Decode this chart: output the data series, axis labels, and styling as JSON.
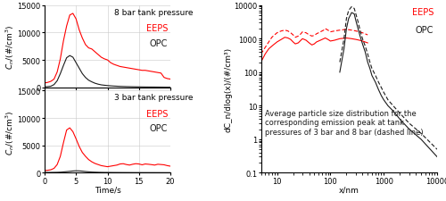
{
  "left_panel": {
    "top": {
      "title": "8 bar tank pressure",
      "eeps_color": "#ff0000",
      "opc_color": "#1a1a1a",
      "ylim": [
        0,
        15000
      ],
      "yticks": [
        0,
        5000,
        10000,
        15000
      ],
      "eeps_x": [
        0,
        0.5,
        1,
        1.5,
        2,
        2.5,
        3,
        3.5,
        4,
        4.5,
        5,
        5.5,
        6,
        6.5,
        7,
        7.5,
        8,
        8.5,
        9,
        9.5,
        10,
        10.5,
        11,
        11.5,
        12,
        12.5,
        13,
        13.5,
        14,
        14.5,
        15,
        15.5,
        16,
        16.5,
        17,
        17.5,
        18,
        18.5,
        19,
        19.5,
        20
      ],
      "eeps_y": [
        800,
        900,
        1100,
        1500,
        2800,
        5200,
        8500,
        11200,
        13200,
        13500,
        12500,
        10500,
        9000,
        7800,
        7200,
        7000,
        6500,
        6000,
        5500,
        5200,
        5000,
        4500,
        4200,
        4000,
        3800,
        3700,
        3600,
        3500,
        3400,
        3300,
        3200,
        3100,
        3100,
        3000,
        2900,
        2800,
        2700,
        2600,
        1800,
        1600,
        1500
      ],
      "opc_x": [
        0,
        0.5,
        1,
        1.5,
        2,
        2.5,
        3,
        3.5,
        4,
        4.5,
        5,
        5.5,
        6,
        6.5,
        7,
        7.5,
        8,
        8.5,
        9,
        9.5,
        10,
        10.5,
        11,
        11.5,
        12,
        12.5,
        13,
        13.5,
        14,
        14.5,
        15,
        15.5,
        16,
        16.5,
        17,
        17.5,
        18,
        18.5,
        19,
        19.5,
        20
      ],
      "opc_y": [
        100,
        120,
        200,
        500,
        1200,
        2500,
        4000,
        5400,
        5800,
        5500,
        4500,
        3500,
        2500,
        1800,
        1300,
        1000,
        750,
        580,
        450,
        380,
        320,
        270,
        230,
        200,
        170,
        150,
        130,
        115,
        100,
        90,
        80,
        70,
        60,
        55,
        50,
        45,
        40,
        35,
        30,
        25,
        20
      ]
    },
    "bottom": {
      "title": "3 bar tank pressure",
      "eeps_color": "#ff0000",
      "opc_color": "#1a1a1a",
      "ylim": [
        0,
        15000
      ],
      "yticks": [
        0,
        5000,
        10000,
        15000
      ],
      "xlabel": "Time/s",
      "xlim": [
        0,
        20
      ],
      "xticks": [
        0,
        5,
        10,
        15,
        20
      ],
      "eeps_x": [
        0,
        0.5,
        1,
        1.5,
        2,
        2.5,
        3,
        3.5,
        4,
        4.5,
        5,
        5.5,
        6,
        6.5,
        7,
        7.5,
        8,
        8.5,
        9,
        9.5,
        10,
        10.5,
        11,
        11.5,
        12,
        12.5,
        13,
        13.5,
        14,
        14.5,
        15,
        15.5,
        16,
        16.5,
        17,
        17.5,
        18,
        18.5,
        19,
        19.5,
        20
      ],
      "eeps_y": [
        400,
        450,
        550,
        800,
        1500,
        3000,
        5500,
        7800,
        8200,
        7500,
        6200,
        4800,
        3700,
        3000,
        2400,
        2000,
        1700,
        1500,
        1300,
        1200,
        1100,
        1200,
        1300,
        1400,
        1600,
        1650,
        1500,
        1400,
        1550,
        1650,
        1600,
        1450,
        1600,
        1550,
        1480,
        1400,
        1550,
        1500,
        1450,
        1300,
        1200
      ],
      "opc_x": [
        0,
        0.5,
        1,
        1.5,
        2,
        2.5,
        3,
        3.5,
        4,
        4.5,
        5,
        5.5,
        6,
        6.5,
        7,
        7.5,
        8,
        8.5,
        9,
        9.5,
        10,
        10.5,
        11,
        11.5,
        12,
        12.5,
        13,
        13.5,
        14,
        14.5,
        15,
        15.5,
        16,
        16.5,
        17,
        17.5,
        18,
        18.5,
        19,
        19.5,
        20
      ],
      "opc_y": [
        50,
        55,
        60,
        65,
        75,
        100,
        150,
        200,
        260,
        320,
        360,
        340,
        290,
        220,
        170,
        130,
        100,
        80,
        65,
        55,
        50,
        45,
        40,
        38,
        35,
        32,
        30,
        28,
        25,
        23,
        22,
        20,
        19,
        18,
        17,
        16,
        15,
        14,
        13,
        12,
        10
      ]
    }
  },
  "right_panel": {
    "ylabel": "dC_n/dlog(x)/(#/cm³)",
    "xlabel": "x/nm",
    "ylim": [
      0.1,
      10000
    ],
    "xlim": [
      5,
      10000
    ],
    "annotation": "Average particle size distribution for the\ncorresponding emission peak at tank\npressures of 3 bar and 8 bar (dashed line)",
    "eeps_solid_x": [
      5,
      6,
      7,
      8,
      9,
      10,
      12,
      14,
      16,
      18,
      20,
      22,
      25,
      28,
      30,
      35,
      40,
      45,
      50,
      55,
      60,
      65,
      70,
      75,
      80,
      85,
      90,
      95,
      100,
      120,
      150,
      200,
      250,
      300,
      350,
      400,
      500
    ],
    "eeps_solid_y": [
      200,
      350,
      500,
      600,
      700,
      800,
      950,
      1100,
      1050,
      950,
      800,
      700,
      750,
      900,
      1000,
      900,
      750,
      650,
      700,
      800,
      850,
      900,
      950,
      1000,
      1050,
      1000,
      950,
      900,
      850,
      900,
      1000,
      1050,
      1000,
      950,
      900,
      850,
      750
    ],
    "eeps_dashed_x": [
      5,
      6,
      7,
      8,
      9,
      10,
      12,
      14,
      16,
      18,
      20,
      22,
      25,
      28,
      30,
      35,
      40,
      45,
      50,
      55,
      60,
      65,
      70,
      75,
      80,
      85,
      90,
      95,
      100,
      120,
      150,
      200,
      250,
      300,
      350,
      400,
      500
    ],
    "eeps_dashed_y": [
      350,
      550,
      800,
      1100,
      1300,
      1500,
      1700,
      1800,
      1700,
      1500,
      1300,
      1100,
      1200,
      1400,
      1600,
      1500,
      1300,
      1200,
      1250,
      1400,
      1500,
      1600,
      1700,
      1800,
      2000,
      1900,
      1800,
      1700,
      1600,
      1700,
      1800,
      1900,
      1800,
      1700,
      1600,
      1500,
      1300
    ],
    "opc_solid_x": [
      150,
      180,
      200,
      220,
      250,
      280,
      300,
      330,
      360,
      400,
      450,
      500,
      550,
      600,
      700,
      800,
      900,
      1000,
      1200,
      1500,
      2000,
      3000,
      5000,
      10000
    ],
    "opc_solid_y": [
      100,
      500,
      2000,
      4000,
      6000,
      5500,
      3500,
      2000,
      1200,
      700,
      400,
      200,
      130,
      80,
      50,
      30,
      20,
      15,
      10,
      7,
      4,
      2,
      1,
      0.3
    ],
    "opc_dashed_x": [
      150,
      180,
      200,
      220,
      250,
      280,
      300,
      330,
      360,
      400,
      450,
      500,
      550,
      600,
      700,
      800,
      900,
      1000,
      1200,
      1500,
      2000,
      3000,
      5000,
      10000
    ],
    "opc_dashed_y": [
      200,
      1000,
      4000,
      7000,
      9000,
      8000,
      5500,
      3200,
      1800,
      1000,
      600,
      350,
      200,
      130,
      80,
      50,
      35,
      25,
      15,
      10,
      6,
      3,
      1.5,
      0.5
    ],
    "eeps_color": "#ff0000",
    "opc_color": "#1a1a1a"
  },
  "bg_color": "#ffffff",
  "grid_color": "#c8c8c8",
  "title_fontsize": 6.5,
  "label_fontsize": 6.5,
  "tick_fontsize": 6,
  "legend_fontsize": 7,
  "annotation_fontsize": 6
}
